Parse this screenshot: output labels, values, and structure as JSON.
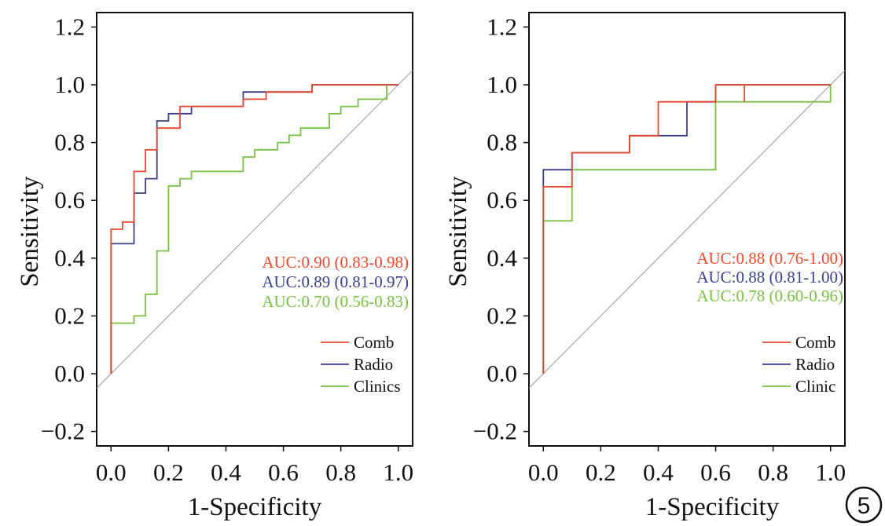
{
  "figure": {
    "badge": "5"
  },
  "chart_data": [
    {
      "type": "line",
      "title": "",
      "xlabel": "1-Specificity",
      "ylabel": "Sensitivity",
      "xlim": [
        -0.05,
        1.05
      ],
      "ylim": [
        -0.25,
        1.25
      ],
      "xticks": [
        0.0,
        0.2,
        0.4,
        0.6,
        0.8,
        1.0
      ],
      "xtick_labels": [
        "0.0",
        "0.2",
        "0.4",
        "0.6",
        "0.8",
        "1.0"
      ],
      "yticks": [
        1.2,
        1.0,
        0.8,
        0.6,
        0.4,
        0.2,
        0.0,
        -0.2
      ],
      "ytick_labels": [
        "1.2",
        "1.0",
        "0.8",
        "0.6",
        "0.4",
        "0.2",
        "0.0",
        "−0.2"
      ],
      "grid": false,
      "legend_position": "bottom-right",
      "reference_line": [
        [
          -0.05,
          -0.05
        ],
        [
          1.05,
          1.05
        ]
      ],
      "series": [
        {
          "name": "Comb",
          "color": "#e8492f",
          "auc_label": "AUC:0.90 (0.83-0.98)",
          "points": [
            [
              0,
              0.0
            ],
            [
              0,
              0.5
            ],
            [
              0.04,
              0.5
            ],
            [
              0.04,
              0.525
            ],
            [
              0.08,
              0.525
            ],
            [
              0.08,
              0.7
            ],
            [
              0.12,
              0.7
            ],
            [
              0.12,
              0.775
            ],
            [
              0.16,
              0.775
            ],
            [
              0.16,
              0.85
            ],
            [
              0.24,
              0.85
            ],
            [
              0.24,
              0.925
            ],
            [
              0.46,
              0.925
            ],
            [
              0.46,
              0.95
            ],
            [
              0.54,
              0.95
            ],
            [
              0.54,
              0.975
            ],
            [
              0.7,
              0.975
            ],
            [
              0.7,
              1.0
            ],
            [
              1.0,
              1.0
            ]
          ]
        },
        {
          "name": "Radio",
          "color": "#3c3f8c",
          "auc_label": "AUC:0.89 (0.81-0.97)",
          "points": [
            [
              0,
              0.0
            ],
            [
              0,
              0.45
            ],
            [
              0.08,
              0.45
            ],
            [
              0.08,
              0.625
            ],
            [
              0.12,
              0.625
            ],
            [
              0.12,
              0.675
            ],
            [
              0.16,
              0.675
            ],
            [
              0.16,
              0.875
            ],
            [
              0.2,
              0.875
            ],
            [
              0.2,
              0.9
            ],
            [
              0.28,
              0.9
            ],
            [
              0.28,
              0.925
            ],
            [
              0.46,
              0.925
            ],
            [
              0.46,
              0.975
            ],
            [
              0.7,
              0.975
            ],
            [
              0.7,
              1.0
            ],
            [
              1.0,
              1.0
            ]
          ]
        },
        {
          "name": "Clinics",
          "color": "#7ac143",
          "auc_label": "AUC:0.70 (0.56-0.83)",
          "points": [
            [
              0,
              0.0
            ],
            [
              0,
              0.175
            ],
            [
              0.08,
              0.175
            ],
            [
              0.08,
              0.2
            ],
            [
              0.12,
              0.2
            ],
            [
              0.12,
              0.275
            ],
            [
              0.16,
              0.275
            ],
            [
              0.16,
              0.425
            ],
            [
              0.2,
              0.425
            ],
            [
              0.2,
              0.65
            ],
            [
              0.24,
              0.65
            ],
            [
              0.24,
              0.675
            ],
            [
              0.28,
              0.675
            ],
            [
              0.28,
              0.7
            ],
            [
              0.46,
              0.7
            ],
            [
              0.46,
              0.75
            ],
            [
              0.5,
              0.75
            ],
            [
              0.5,
              0.775
            ],
            [
              0.58,
              0.775
            ],
            [
              0.58,
              0.8
            ],
            [
              0.62,
              0.8
            ],
            [
              0.62,
              0.825
            ],
            [
              0.66,
              0.825
            ],
            [
              0.66,
              0.85
            ],
            [
              0.76,
              0.85
            ],
            [
              0.76,
              0.9
            ],
            [
              0.8,
              0.9
            ],
            [
              0.8,
              0.925
            ],
            [
              0.86,
              0.925
            ],
            [
              0.86,
              0.95
            ],
            [
              0.96,
              0.95
            ],
            [
              0.96,
              1.0
            ],
            [
              1.0,
              1.0
            ]
          ]
        }
      ]
    },
    {
      "type": "line",
      "title": "",
      "xlabel": "1-Specificity",
      "ylabel": "Sensitivity",
      "xlim": [
        -0.05,
        1.05
      ],
      "ylim": [
        -0.25,
        1.25
      ],
      "xticks": [
        0.0,
        0.2,
        0.4,
        0.6,
        0.8,
        1.0
      ],
      "xtick_labels": [
        "0.0",
        "0.2",
        "0.4",
        "0.6",
        "0.8",
        "1.0"
      ],
      "yticks": [
        1.2,
        1.0,
        0.8,
        0.6,
        0.4,
        0.2,
        0.0,
        -0.2
      ],
      "ytick_labels": [
        "1.2",
        "1.0",
        "0.8",
        "0.6",
        "0.4",
        "0.2",
        "0.0",
        "−0.2"
      ],
      "grid": false,
      "legend_position": "bottom-right",
      "reference_line": [
        [
          -0.05,
          -0.05
        ],
        [
          1.05,
          1.05
        ]
      ],
      "series": [
        {
          "name": "Comb",
          "color": "#e8492f",
          "auc_label": "AUC:0.88 (0.76-1.00)",
          "points": [
            [
              0,
              0.0
            ],
            [
              0,
              0.647
            ],
            [
              0.1,
              0.647
            ],
            [
              0.1,
              0.765
            ],
            [
              0.3,
              0.765
            ],
            [
              0.3,
              0.824
            ],
            [
              0.4,
              0.824
            ],
            [
              0.4,
              0.941
            ],
            [
              0.6,
              0.941
            ],
            [
              0.6,
              1.0
            ],
            [
              0.7,
              1.0
            ],
            [
              0.7,
              0.941
            ],
            [
              0.7,
              1.0
            ],
            [
              1.0,
              1.0
            ]
          ]
        },
        {
          "name": "Radio",
          "color": "#3c3f8c",
          "auc_label": "AUC:0.88 (0.81-1.00)",
          "points": [
            [
              0,
              0.0
            ],
            [
              0,
              0.706
            ],
            [
              0.1,
              0.706
            ],
            [
              0.1,
              0.765
            ],
            [
              0.3,
              0.765
            ],
            [
              0.3,
              0.824
            ],
            [
              0.5,
              0.824
            ],
            [
              0.5,
              0.941
            ],
            [
              0.6,
              0.941
            ],
            [
              0.6,
              1.0
            ],
            [
              1.0,
              1.0
            ]
          ]
        },
        {
          "name": "Clinic",
          "color": "#7ac143",
          "auc_label": "AUC:0.78 (0.60-0.96)",
          "points": [
            [
              0,
              0.0
            ],
            [
              0,
              0.529
            ],
            [
              0.1,
              0.529
            ],
            [
              0.1,
              0.706
            ],
            [
              0.6,
              0.706
            ],
            [
              0.6,
              0.941
            ],
            [
              1.0,
              0.941
            ],
            [
              1.0,
              1.0
            ]
          ]
        }
      ]
    }
  ]
}
